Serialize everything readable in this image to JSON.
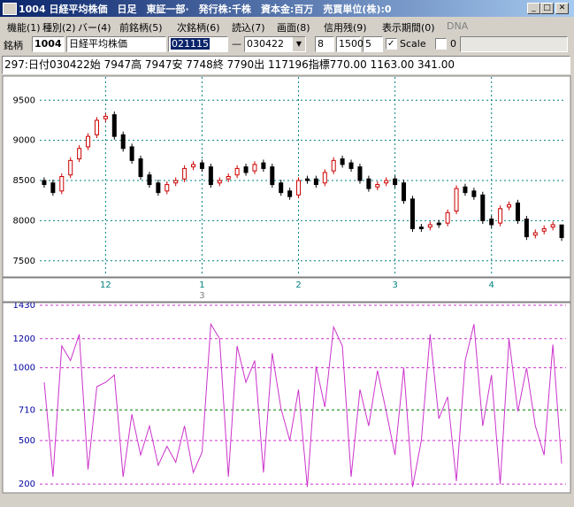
{
  "window": {
    "title": "1004 日経平均株価　日足　東証一部·　発行株:千株　資本金:百万　売買単位(株):0",
    "menu": [
      "機能(1)",
      "種別(2)",
      "バー(4)",
      "前銘柄(5)",
      "次銘柄(6)",
      "読込(7)",
      "画面(8)",
      "信用残(9)",
      "表示期間(0)",
      "DNA"
    ],
    "toolbar": {
      "label": "銘柄",
      "code": "1004",
      "name": "日経平均株価",
      "from": "021115",
      "dash": "—",
      "to": "030422",
      "field1": "8",
      "field2": "1500",
      "field3": "5",
      "scale": "Scale",
      "zero": "0"
    },
    "info": "297:日付030422始 7947高 7947安 7748終 7790出 117196指標770.00 1163.00 341.00"
  },
  "chart_data": [
    {
      "type": "candlestick",
      "categories": [
        null,
        null,
        null,
        null,
        null,
        null,
        null,
        "12",
        null,
        null,
        null,
        null,
        null,
        null,
        null,
        null,
        null,
        null,
        "1",
        null,
        null,
        null,
        null,
        null,
        null,
        null,
        null,
        null,
        null,
        "2",
        null,
        null,
        null,
        null,
        null,
        null,
        null,
        null,
        null,
        null,
        "3",
        null,
        null,
        null,
        null,
        null,
        null,
        null,
        null,
        null,
        null,
        "4",
        null,
        null,
        null,
        null,
        null,
        null,
        null,
        null
      ],
      "x_sub_label": "3",
      "open": [
        8500,
        8470,
        8370,
        8570,
        8770,
        8920,
        9070,
        9270,
        9320,
        9070,
        8920,
        8770,
        8570,
        8470,
        8370,
        8470,
        8520,
        8670,
        8720,
        8670,
        8470,
        8520,
        8570,
        8670,
        8620,
        8720,
        8670,
        8470,
        8370,
        8320,
        8520,
        8520,
        8470,
        8620,
        8770,
        8720,
        8670,
        8520,
        8420,
        8470,
        8520,
        8470,
        8270,
        7920,
        7920,
        7970,
        7970,
        8120,
        8420,
        8370,
        8320,
        8020,
        7970,
        8170,
        8220,
        8020,
        7820,
        7870,
        7920,
        7947
      ],
      "high": [
        8540,
        8510,
        8590,
        8790,
        8940,
        9090,
        9290,
        9340,
        9360,
        9110,
        8960,
        8810,
        8610,
        8510,
        8490,
        8540,
        8690,
        8740,
        8760,
        8710,
        8540,
        8590,
        8690,
        8710,
        8740,
        8760,
        8710,
        8510,
        8410,
        8540,
        8560,
        8560,
        8640,
        8790,
        8810,
        8760,
        8710,
        8560,
        8490,
        8540,
        8560,
        8510,
        8310,
        7960,
        7990,
        8010,
        8140,
        8440,
        8460,
        8410,
        8360,
        8060,
        8190,
        8240,
        8260,
        8060,
        7890,
        7940,
        7990,
        7947
      ],
      "low": [
        8410,
        8310,
        8330,
        8530,
        8730,
        8880,
        9030,
        9230,
        9010,
        8860,
        8710,
        8510,
        8410,
        8310,
        8330,
        8430,
        8480,
        8630,
        8610,
        8410,
        8430,
        8480,
        8530,
        8560,
        8580,
        8610,
        8410,
        8310,
        8260,
        8280,
        8460,
        8410,
        8430,
        8580,
        8660,
        8610,
        8460,
        8360,
        8380,
        8430,
        8410,
        8210,
        7860,
        7860,
        7880,
        7910,
        7930,
        8080,
        8310,
        8260,
        7960,
        7910,
        7930,
        8130,
        7960,
        7760,
        7780,
        7830,
        7880,
        7748
      ],
      "close": [
        8450,
        8350,
        8550,
        8750,
        8900,
        9050,
        9250,
        9300,
        9050,
        8900,
        8750,
        8550,
        8450,
        8350,
        8450,
        8500,
        8650,
        8700,
        8650,
        8450,
        8500,
        8550,
        8650,
        8600,
        8700,
        8650,
        8450,
        8350,
        8300,
        8500,
        8500,
        8450,
        8600,
        8750,
        8700,
        8650,
        8500,
        8400,
        8450,
        8500,
        8450,
        8250,
        7900,
        7900,
        7950,
        7950,
        8100,
        8400,
        8350,
        8300,
        8000,
        7950,
        8150,
        8200,
        8000,
        7800,
        7850,
        7900,
        7950,
        7790
      ],
      "up_color": "#cc0000",
      "down_color": "#000000",
      "grid_color": "#008080",
      "ylim": [
        7310,
        9790
      ],
      "yticks": [
        7500,
        8000,
        8500,
        9000,
        9500
      ],
      "grid": true
    },
    {
      "type": "line",
      "color": "#cc33cc",
      "values": [
        900,
        250,
        1150,
        1050,
        1230,
        300,
        870,
        900,
        950,
        250,
        680,
        400,
        600,
        330,
        460,
        350,
        600,
        280,
        420,
        1300,
        1200,
        250,
        1150,
        900,
        1050,
        280,
        1100,
        720,
        500,
        850,
        180,
        1010,
        730,
        1280,
        1150,
        250,
        850,
        600,
        980,
        700,
        400,
        1000,
        180,
        500,
        1230,
        650,
        800,
        220,
        1050,
        1300,
        600,
        950,
        200,
        1200,
        700,
        1000,
        600,
        400,
        1160,
        341
      ],
      "ylim": [
        152,
        1430
      ],
      "yticks": [
        200,
        500,
        710,
        1000,
        1200,
        1430
      ],
      "grid": true,
      "grid_color": "#cc33cc",
      "highlight_tick": 710,
      "highlight_color": "#008000"
    }
  ]
}
